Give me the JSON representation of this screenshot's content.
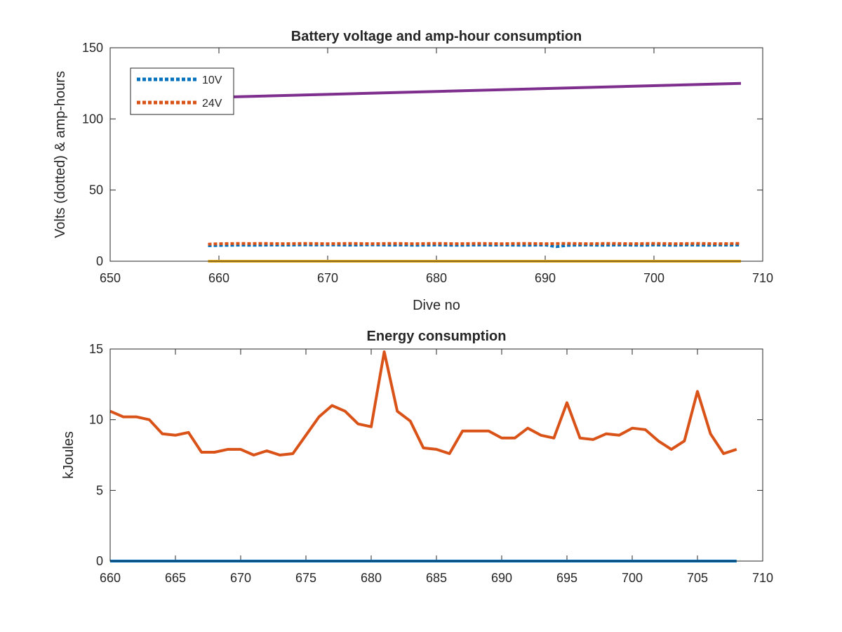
{
  "colors": {
    "blue": "#0072BD",
    "orange": "#D95319",
    "yellow": "#EDB120",
    "purple": "#7E2F8E",
    "axis": "#262626"
  },
  "chart_data": [
    {
      "type": "line",
      "title": "Battery voltage and amp-hour consumption",
      "xlabel": "Dive no",
      "ylabel": "Volts (dotted) & amp-hours",
      "xlim": [
        650,
        710
      ],
      "ylim": [
        0,
        150
      ],
      "xticks": [
        650,
        660,
        670,
        680,
        690,
        700,
        710
      ],
      "yticks": [
        0,
        50,
        100,
        150
      ],
      "legend_position": "top-left",
      "series": [
        {
          "name": "10V",
          "style": "dotted",
          "color": "blue",
          "x": [
            659,
            660,
            661,
            662,
            663,
            664,
            665,
            666,
            667,
            668,
            669,
            670,
            671,
            672,
            673,
            674,
            675,
            676,
            677,
            678,
            679,
            680,
            681,
            682,
            683,
            684,
            685,
            686,
            687,
            688,
            689,
            690,
            691,
            692,
            693,
            694,
            695,
            696,
            697,
            698,
            699,
            700,
            701,
            702,
            703,
            704,
            705,
            706,
            707,
            708
          ],
          "values": [
            10.9,
            11.1,
            11.2,
            11.3,
            11.2,
            11.3,
            11.4,
            11.3,
            11.4,
            11.5,
            11.4,
            11.5,
            11.4,
            11.3,
            11.4,
            11.5,
            11.4,
            11.3,
            11.4,
            11.2,
            11.3,
            11.4,
            11.3,
            11.2,
            11.3,
            11.4,
            11.3,
            11.4,
            11.3,
            11.2,
            11.3,
            11.4,
            10.2,
            11.1,
            11.3,
            11.4,
            11.2,
            11.3,
            11.4,
            11.3,
            11.2,
            11.4,
            11.3,
            11.2,
            11.4,
            11.3,
            11.2,
            11.4,
            11.3,
            11.4
          ]
        },
        {
          "name": "24V",
          "style": "dotted",
          "color": "orange",
          "x": [
            659,
            660,
            661,
            662,
            663,
            664,
            665,
            666,
            667,
            668,
            669,
            670,
            671,
            672,
            673,
            674,
            675,
            676,
            677,
            678,
            679,
            680,
            681,
            682,
            683,
            684,
            685,
            686,
            687,
            688,
            689,
            690,
            691,
            692,
            693,
            694,
            695,
            696,
            697,
            698,
            699,
            700,
            701,
            702,
            703,
            704,
            705,
            706,
            707,
            708
          ],
          "values": [
            12.0,
            12.3,
            12.4,
            12.5,
            12.4,
            12.5,
            12.4,
            12.3,
            12.4,
            12.5,
            12.4,
            12.3,
            12.4,
            12.5,
            12.4,
            12.3,
            12.4,
            12.5,
            12.4,
            12.3,
            12.4,
            12.5,
            12.4,
            12.3,
            12.4,
            12.5,
            12.4,
            12.3,
            12.4,
            12.5,
            12.4,
            12.3,
            12.4,
            12.5,
            12.4,
            12.3,
            12.4,
            12.5,
            12.4,
            12.3,
            12.4,
            12.5,
            12.4,
            12.3,
            12.4,
            12.5,
            12.4,
            12.3,
            12.4,
            12.5
          ]
        },
        {
          "style": "solid",
          "color": "yellow",
          "x": [
            659,
            708
          ],
          "values": [
            0,
            0
          ]
        },
        {
          "style": "solid",
          "color": "purple",
          "x": [
            659,
            708
          ],
          "values": [
            115,
            125
          ]
        }
      ]
    },
    {
      "type": "line",
      "title": "Energy consumption",
      "xlabel": "",
      "ylabel": "kJoules",
      "xlim": [
        660,
        710
      ],
      "ylim": [
        0,
        15
      ],
      "xticks": [
        660,
        665,
        670,
        675,
        680,
        685,
        690,
        695,
        700,
        705,
        710
      ],
      "yticks": [
        0,
        5,
        10,
        15
      ],
      "series": [
        {
          "style": "solid",
          "color": "orange",
          "x": [
            660,
            661,
            662,
            663,
            664,
            665,
            666,
            667,
            668,
            669,
            670,
            671,
            672,
            673,
            674,
            675,
            676,
            677,
            678,
            679,
            680,
            681,
            682,
            683,
            684,
            685,
            686,
            687,
            688,
            689,
            690,
            691,
            692,
            693,
            694,
            695,
            696,
            697,
            698,
            699,
            700,
            701,
            702,
            703,
            704,
            705,
            706,
            707,
            708
          ],
          "values": [
            10.6,
            10.2,
            10.2,
            10.0,
            9.0,
            8.9,
            9.1,
            7.7,
            7.7,
            7.9,
            7.9,
            7.5,
            7.8,
            7.5,
            7.6,
            8.9,
            10.2,
            11.0,
            10.6,
            9.7,
            9.5,
            14.8,
            10.6,
            9.9,
            8.0,
            7.9,
            7.6,
            9.2,
            9.2,
            9.2,
            8.7,
            8.7,
            9.4,
            8.9,
            8.7,
            11.2,
            8.7,
            8.6,
            9.0,
            8.9,
            9.4,
            9.3,
            8.5,
            7.9,
            8.5,
            12.0,
            9.0,
            7.6,
            7.9
          ]
        },
        {
          "style": "solid",
          "color": "blue",
          "x": [
            660,
            708
          ],
          "values": [
            0,
            0
          ]
        }
      ]
    }
  ]
}
